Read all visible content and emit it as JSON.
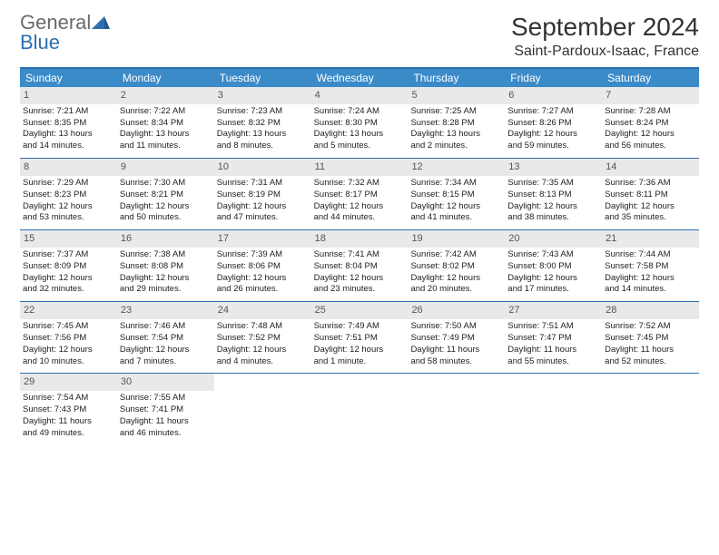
{
  "brand": {
    "text1": "General",
    "text2": "Blue"
  },
  "title": "September 2024",
  "location": "Saint-Pardoux-Isaac, France",
  "colors": {
    "header_bar": "#3b8bc9",
    "accent_line": "#2d6fb0",
    "daynum_bg": "#e9e9e9",
    "text": "#222222",
    "logo_gray": "#6a6a6a"
  },
  "dow": [
    "Sunday",
    "Monday",
    "Tuesday",
    "Wednesday",
    "Thursday",
    "Friday",
    "Saturday"
  ],
  "weeks": [
    [
      {
        "n": "1",
        "sr": "Sunrise: 7:21 AM",
        "ss": "Sunset: 8:35 PM",
        "d1": "Daylight: 13 hours",
        "d2": "and 14 minutes."
      },
      {
        "n": "2",
        "sr": "Sunrise: 7:22 AM",
        "ss": "Sunset: 8:34 PM",
        "d1": "Daylight: 13 hours",
        "d2": "and 11 minutes."
      },
      {
        "n": "3",
        "sr": "Sunrise: 7:23 AM",
        "ss": "Sunset: 8:32 PM",
        "d1": "Daylight: 13 hours",
        "d2": "and 8 minutes."
      },
      {
        "n": "4",
        "sr": "Sunrise: 7:24 AM",
        "ss": "Sunset: 8:30 PM",
        "d1": "Daylight: 13 hours",
        "d2": "and 5 minutes."
      },
      {
        "n": "5",
        "sr": "Sunrise: 7:25 AM",
        "ss": "Sunset: 8:28 PM",
        "d1": "Daylight: 13 hours",
        "d2": "and 2 minutes."
      },
      {
        "n": "6",
        "sr": "Sunrise: 7:27 AM",
        "ss": "Sunset: 8:26 PM",
        "d1": "Daylight: 12 hours",
        "d2": "and 59 minutes."
      },
      {
        "n": "7",
        "sr": "Sunrise: 7:28 AM",
        "ss": "Sunset: 8:24 PM",
        "d1": "Daylight: 12 hours",
        "d2": "and 56 minutes."
      }
    ],
    [
      {
        "n": "8",
        "sr": "Sunrise: 7:29 AM",
        "ss": "Sunset: 8:23 PM",
        "d1": "Daylight: 12 hours",
        "d2": "and 53 minutes."
      },
      {
        "n": "9",
        "sr": "Sunrise: 7:30 AM",
        "ss": "Sunset: 8:21 PM",
        "d1": "Daylight: 12 hours",
        "d2": "and 50 minutes."
      },
      {
        "n": "10",
        "sr": "Sunrise: 7:31 AM",
        "ss": "Sunset: 8:19 PM",
        "d1": "Daylight: 12 hours",
        "d2": "and 47 minutes."
      },
      {
        "n": "11",
        "sr": "Sunrise: 7:32 AM",
        "ss": "Sunset: 8:17 PM",
        "d1": "Daylight: 12 hours",
        "d2": "and 44 minutes."
      },
      {
        "n": "12",
        "sr": "Sunrise: 7:34 AM",
        "ss": "Sunset: 8:15 PM",
        "d1": "Daylight: 12 hours",
        "d2": "and 41 minutes."
      },
      {
        "n": "13",
        "sr": "Sunrise: 7:35 AM",
        "ss": "Sunset: 8:13 PM",
        "d1": "Daylight: 12 hours",
        "d2": "and 38 minutes."
      },
      {
        "n": "14",
        "sr": "Sunrise: 7:36 AM",
        "ss": "Sunset: 8:11 PM",
        "d1": "Daylight: 12 hours",
        "d2": "and 35 minutes."
      }
    ],
    [
      {
        "n": "15",
        "sr": "Sunrise: 7:37 AM",
        "ss": "Sunset: 8:09 PM",
        "d1": "Daylight: 12 hours",
        "d2": "and 32 minutes."
      },
      {
        "n": "16",
        "sr": "Sunrise: 7:38 AM",
        "ss": "Sunset: 8:08 PM",
        "d1": "Daylight: 12 hours",
        "d2": "and 29 minutes."
      },
      {
        "n": "17",
        "sr": "Sunrise: 7:39 AM",
        "ss": "Sunset: 8:06 PM",
        "d1": "Daylight: 12 hours",
        "d2": "and 26 minutes."
      },
      {
        "n": "18",
        "sr": "Sunrise: 7:41 AM",
        "ss": "Sunset: 8:04 PM",
        "d1": "Daylight: 12 hours",
        "d2": "and 23 minutes."
      },
      {
        "n": "19",
        "sr": "Sunrise: 7:42 AM",
        "ss": "Sunset: 8:02 PM",
        "d1": "Daylight: 12 hours",
        "d2": "and 20 minutes."
      },
      {
        "n": "20",
        "sr": "Sunrise: 7:43 AM",
        "ss": "Sunset: 8:00 PM",
        "d1": "Daylight: 12 hours",
        "d2": "and 17 minutes."
      },
      {
        "n": "21",
        "sr": "Sunrise: 7:44 AM",
        "ss": "Sunset: 7:58 PM",
        "d1": "Daylight: 12 hours",
        "d2": "and 14 minutes."
      }
    ],
    [
      {
        "n": "22",
        "sr": "Sunrise: 7:45 AM",
        "ss": "Sunset: 7:56 PM",
        "d1": "Daylight: 12 hours",
        "d2": "and 10 minutes."
      },
      {
        "n": "23",
        "sr": "Sunrise: 7:46 AM",
        "ss": "Sunset: 7:54 PM",
        "d1": "Daylight: 12 hours",
        "d2": "and 7 minutes."
      },
      {
        "n": "24",
        "sr": "Sunrise: 7:48 AM",
        "ss": "Sunset: 7:52 PM",
        "d1": "Daylight: 12 hours",
        "d2": "and 4 minutes."
      },
      {
        "n": "25",
        "sr": "Sunrise: 7:49 AM",
        "ss": "Sunset: 7:51 PM",
        "d1": "Daylight: 12 hours",
        "d2": "and 1 minute."
      },
      {
        "n": "26",
        "sr": "Sunrise: 7:50 AM",
        "ss": "Sunset: 7:49 PM",
        "d1": "Daylight: 11 hours",
        "d2": "and 58 minutes."
      },
      {
        "n": "27",
        "sr": "Sunrise: 7:51 AM",
        "ss": "Sunset: 7:47 PM",
        "d1": "Daylight: 11 hours",
        "d2": "and 55 minutes."
      },
      {
        "n": "28",
        "sr": "Sunrise: 7:52 AM",
        "ss": "Sunset: 7:45 PM",
        "d1": "Daylight: 11 hours",
        "d2": "and 52 minutes."
      }
    ],
    [
      {
        "n": "29",
        "sr": "Sunrise: 7:54 AM",
        "ss": "Sunset: 7:43 PM",
        "d1": "Daylight: 11 hours",
        "d2": "and 49 minutes."
      },
      {
        "n": "30",
        "sr": "Sunrise: 7:55 AM",
        "ss": "Sunset: 7:41 PM",
        "d1": "Daylight: 11 hours",
        "d2": "and 46 minutes."
      },
      {
        "empty": true
      },
      {
        "empty": true
      },
      {
        "empty": true
      },
      {
        "empty": true
      },
      {
        "empty": true
      }
    ]
  ]
}
